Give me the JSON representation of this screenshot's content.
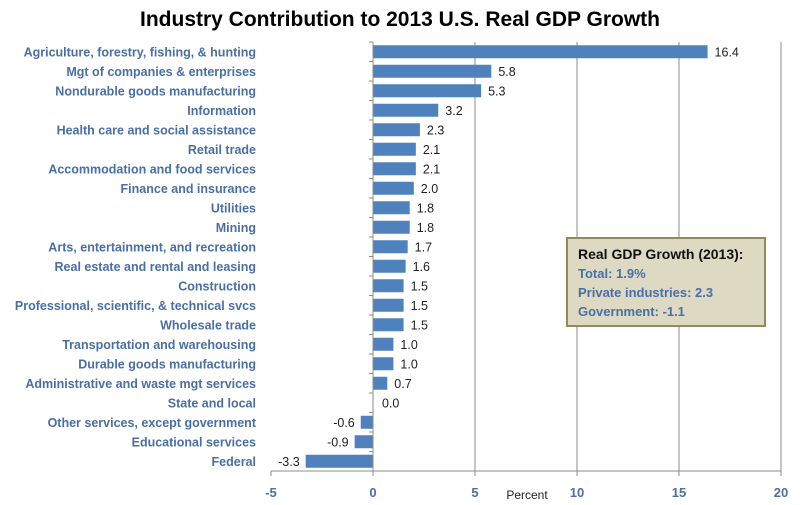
{
  "chart_data": {
    "type": "bar",
    "orientation": "horizontal",
    "title": "Industry Contribution to 2013 U.S. Real GDP Growth",
    "xlabel": "Percent",
    "xlim": [
      -5,
      20
    ],
    "xticks": [
      -5,
      0,
      5,
      10,
      15,
      20
    ],
    "grid": "vertical",
    "bar_color": "#4f81bd",
    "categories": [
      "Agriculture, forestry, fishing, & hunting",
      "Mgt of companies & enterprises",
      "Nondurable goods manufacturing",
      "Information",
      "Health care and social assistance",
      "Retail trade",
      "Accommodation and food services",
      "Finance and insurance",
      "Utilities",
      "Mining",
      "Arts, entertainment, and recreation",
      "Real estate and rental and leasing",
      "Construction",
      "Professional, scientific, & technical svcs",
      "Wholesale trade",
      "Transportation and warehousing",
      "Durable goods manufacturing",
      "Administrative and waste mgt services",
      "State and local",
      "Other services, except government",
      "Educational services",
      "Federal"
    ],
    "values": [
      16.4,
      5.8,
      5.3,
      3.2,
      2.3,
      2.1,
      2.1,
      2.0,
      1.8,
      1.8,
      1.7,
      1.6,
      1.5,
      1.5,
      1.5,
      1.0,
      1.0,
      0.7,
      0.0,
      -0.6,
      -0.9,
      -3.3
    ]
  },
  "annotation": {
    "heading": "Real GDP Growth (2013):",
    "lines": [
      "Total:  1.9%",
      "Private industries:  2.3",
      "Government:  -1.1"
    ]
  }
}
